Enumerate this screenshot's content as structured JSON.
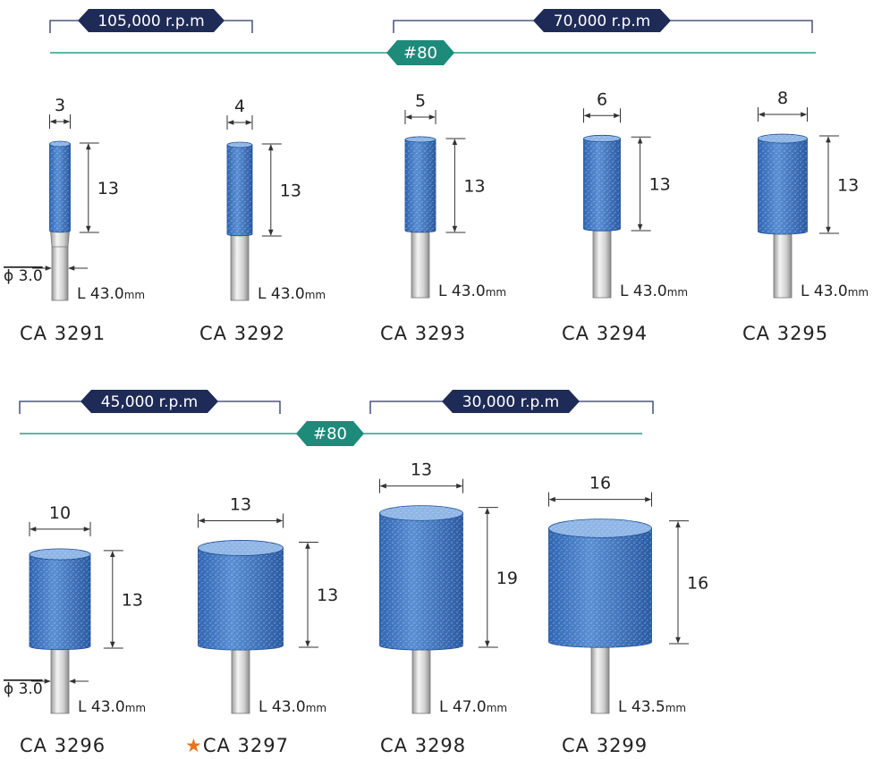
{
  "rows": [
    {
      "speeds": [
        {
          "label": "105,000 r.p.m"
        },
        {
          "label": "70,000 r.p.m"
        }
      ],
      "grit": "#80",
      "products": [
        {
          "code": "CA 3291",
          "diameter": "3",
          "height": "13",
          "length": "L 43.0",
          "length_unit": "mm",
          "shank": "ϕ 3.0",
          "starred": false
        },
        {
          "code": "CA 3292",
          "diameter": "4",
          "height": "13",
          "length": "L 43.0",
          "length_unit": "mm",
          "starred": false
        },
        {
          "code": "CA 3293",
          "diameter": "5",
          "height": "13",
          "length": "L 43.0",
          "length_unit": "mm",
          "starred": false
        },
        {
          "code": "CA 3294",
          "diameter": "6",
          "height": "13",
          "length": "L 43.0",
          "length_unit": "mm",
          "starred": false
        },
        {
          "code": "CA 3295",
          "diameter": "8",
          "height": "13",
          "length": "L 43.0",
          "length_unit": "mm",
          "starred": false
        }
      ]
    },
    {
      "speeds": [
        {
          "label": "45,000 r.p.m"
        },
        {
          "label": "30,000 r.p.m"
        }
      ],
      "grit": "#80",
      "products": [
        {
          "code": "CA 3296",
          "diameter": "10",
          "height": "13",
          "length": "L 43.0",
          "length_unit": "mm",
          "shank": "ϕ 3.0",
          "starred": false
        },
        {
          "code": "CA 3297",
          "diameter": "13",
          "height": "13",
          "length": "L 43.0",
          "length_unit": "mm",
          "starred": true
        },
        {
          "code": "CA 3298",
          "diameter": "13",
          "height": "19",
          "length": "L 47.0",
          "length_unit": "mm",
          "starred": false
        },
        {
          "code": "CA 3299",
          "diameter": "16",
          "height": "16",
          "length": "L 43.5",
          "length_unit": "mm",
          "starred": false
        }
      ]
    }
  ],
  "star_symbol": "★",
  "colors": {
    "speed_badge": "#1f2b57",
    "grit_badge": "#1e8a7a",
    "grit_line": "#2f9b8a",
    "bracket": "#2a3566",
    "stone_blue": "#4a7fc6",
    "stone_dark": "#2d5fa8",
    "shank": "#d8d8d8"
  }
}
